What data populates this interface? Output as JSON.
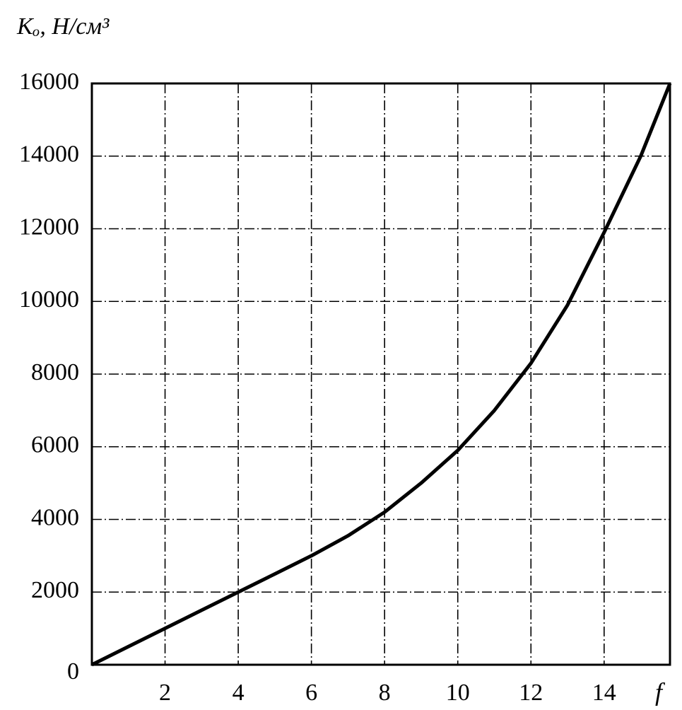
{
  "chart_data": {
    "type": "line",
    "y_label": "Kₒ, Н/см³",
    "x_label": "f",
    "x": [
      0,
      1,
      2,
      3,
      4,
      5,
      6,
      7,
      8,
      9,
      10,
      11,
      12,
      13,
      14,
      15,
      15.8
    ],
    "values": [
      0,
      500,
      1000,
      1500,
      2000,
      2500,
      3000,
      3550,
      4200,
      5000,
      5900,
      7000,
      8300,
      9900,
      11900,
      14000,
      16000
    ],
    "color": "#000000",
    "xlim": [
      0,
      15.8
    ],
    "ylim": [
      0,
      16000
    ],
    "xticks": [
      2,
      4,
      6,
      8,
      10,
      12,
      14
    ],
    "yticks": [
      0,
      2000,
      4000,
      6000,
      8000,
      10000,
      12000,
      14000,
      16000
    ],
    "grid": true
  }
}
